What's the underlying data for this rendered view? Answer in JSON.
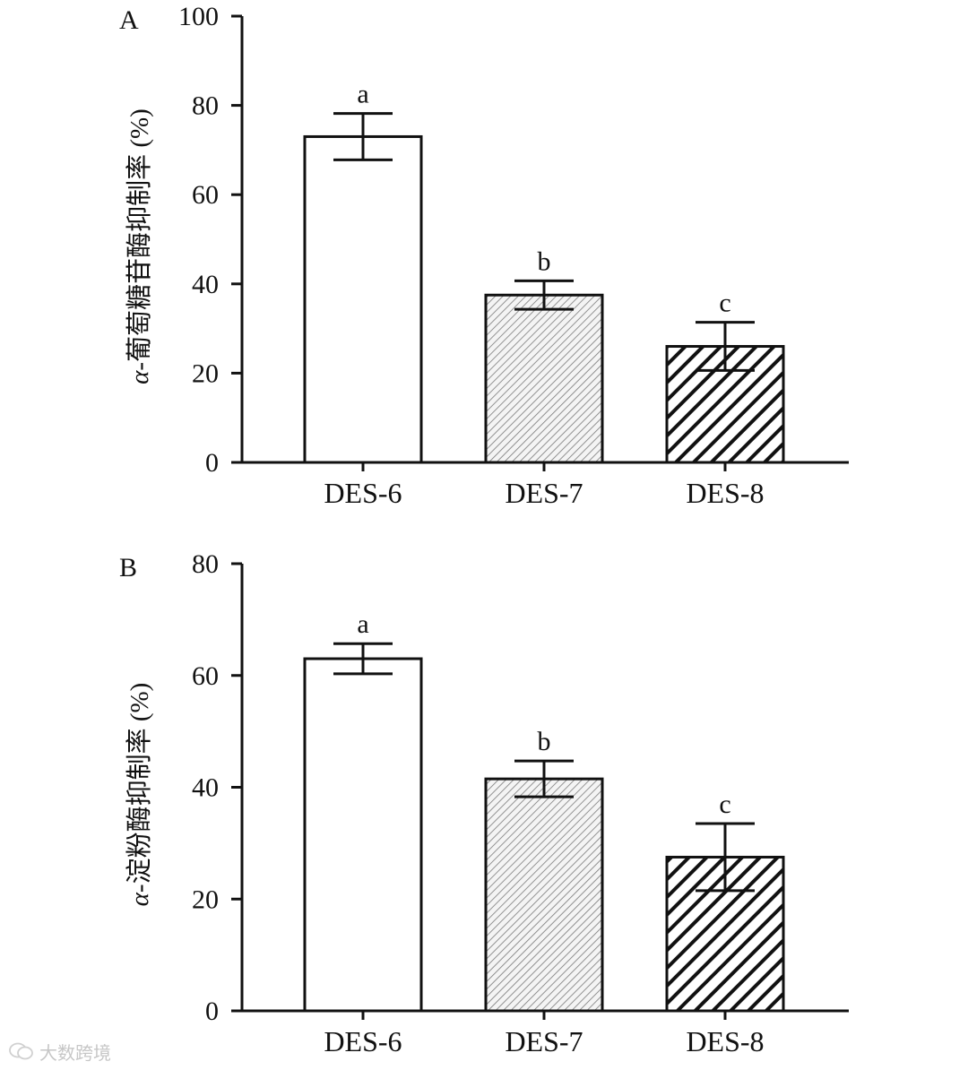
{
  "chart_data": [
    {
      "type": "bar",
      "panel": "A",
      "categories": [
        "DES-6",
        "DES-7",
        "DES-8"
      ],
      "values": [
        73,
        37.5,
        26
      ],
      "errors": [
        5.2,
        3.2,
        5.4
      ],
      "significance": [
        "a",
        "b",
        "c"
      ],
      "patterns": [
        "solid-white",
        "fine-hatch-gray",
        "bold-hatch-black"
      ],
      "ylabel_prefix": "α",
      "ylabel": "-葡萄糖苷酶抑制率 (%)",
      "ylim": [
        0,
        100
      ],
      "yticks": [
        0,
        20,
        40,
        60,
        80,
        100
      ],
      "ytick_labels": [
        "0",
        "20",
        "40",
        "60",
        "80",
        "100"
      ]
    },
    {
      "type": "bar",
      "panel": "B",
      "categories": [
        "DES-6",
        "DES-7",
        "DES-8"
      ],
      "values": [
        63,
        41.5,
        27.5
      ],
      "errors": [
        2.7,
        3.2,
        6.0
      ],
      "significance": [
        "a",
        "b",
        "c"
      ],
      "patterns": [
        "solid-white",
        "fine-hatch-gray",
        "bold-hatch-black"
      ],
      "ylabel_prefix": "α",
      "ylabel": "-淀粉酶抑制率 (%)",
      "ylim": [
        0,
        80
      ],
      "yticks": [
        0,
        20,
        40,
        60,
        80
      ],
      "ytick_labels": [
        "0",
        "20",
        "40",
        "60",
        "80"
      ]
    }
  ],
  "watermark": {
    "text": "大数跨境",
    "icon": "wechat-logo-icon"
  }
}
